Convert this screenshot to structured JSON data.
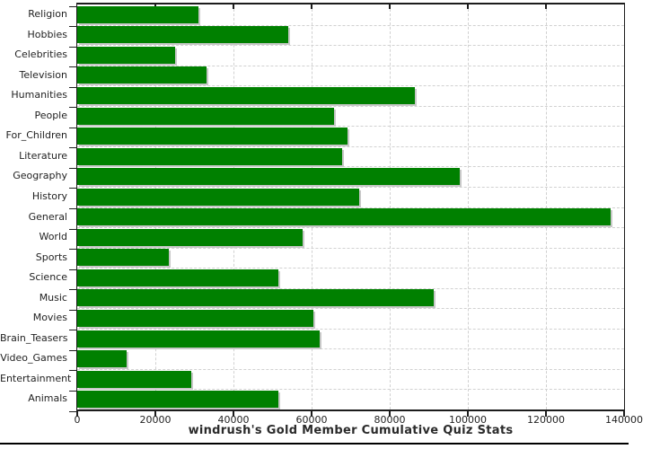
{
  "chart_data": {
    "type": "bar",
    "orientation": "horizontal",
    "title": "windrush's Gold Member Cumulative Quiz Stats",
    "categories": [
      "Religion",
      "Hobbies",
      "Celebrities",
      "Television",
      "Humanities",
      "People",
      "For_Children",
      "Literature",
      "Geography",
      "History",
      "General",
      "World",
      "Sports",
      "Science",
      "Music",
      "Movies",
      "Brain_Teasers",
      "Video_Games",
      "Entertainment",
      "Animals"
    ],
    "values": [
      31000,
      54000,
      25000,
      33200,
      86400,
      65700,
      69300,
      67900,
      97900,
      72200,
      136500,
      57700,
      23400,
      51500,
      91300,
      60400,
      62100,
      12600,
      29300,
      51500
    ],
    "xlim": [
      0,
      140000
    ],
    "x_tick_step": 20000,
    "x_tick_labels": [
      "0",
      "20000",
      "40000",
      "60000",
      "80000",
      "100000",
      "120000",
      "140000"
    ],
    "xlabel": "",
    "ylabel": "",
    "grid": "dashed-both-axes",
    "legend": "none",
    "colors": {
      "bar_fill": "#008000",
      "bar_shadow": "#c8c8c8",
      "grid_line": "#d1d1d1",
      "frame": "#1c1c1c",
      "text": "#1f1f1f",
      "background": "#ffffff",
      "bottom_rule": "#000000"
    }
  }
}
